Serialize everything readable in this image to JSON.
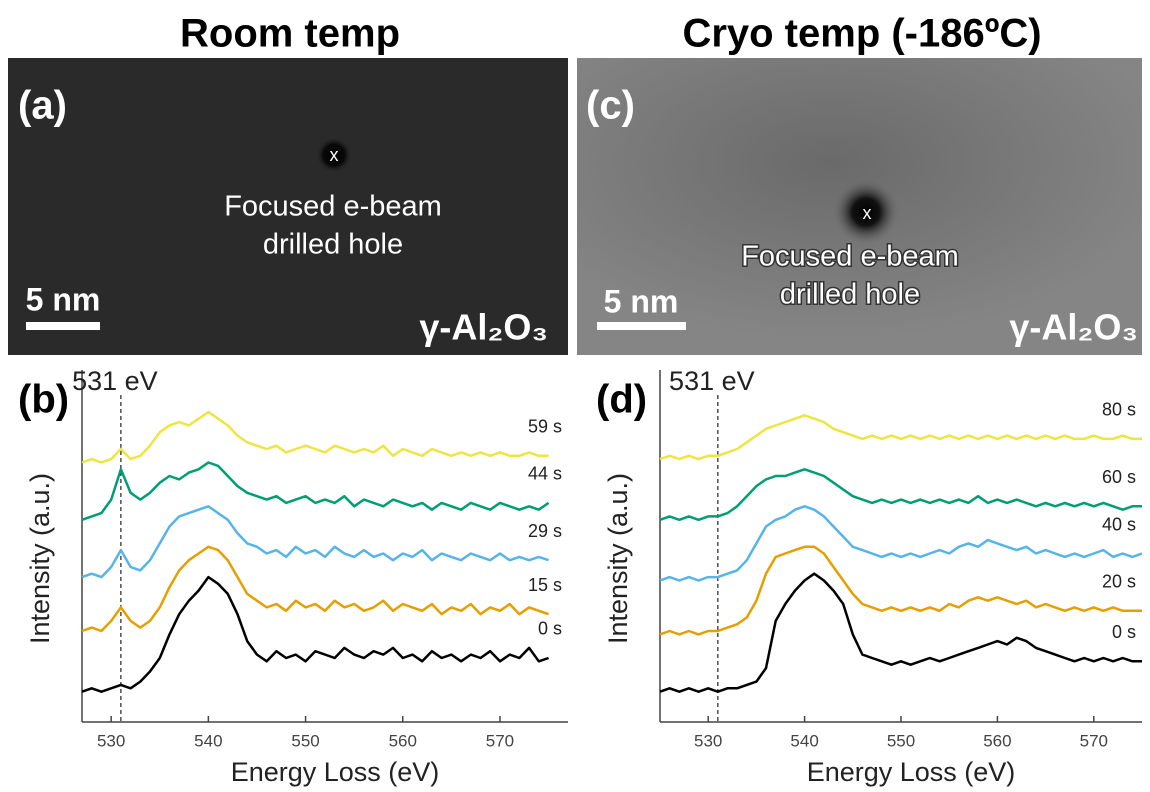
{
  "headings": {
    "left": "Room temp",
    "right": "Cryo temp (-186ºC)"
  },
  "images": [
    {
      "label": "(a)",
      "marker": "x",
      "annotation": [
        "Focused e-beam",
        "drilled hole"
      ],
      "scale_bar": "5 nm",
      "material": "γ-Al₂O₃"
    },
    {
      "label": "(c)",
      "marker": "x",
      "annotation": [
        "Focused e-beam",
        "drilled hole"
      ],
      "scale_bar": "5 nm",
      "material": "γ-Al₂O₃"
    }
  ],
  "chart_data": [
    {
      "type": "line",
      "panel_label": "(b)",
      "x_label": "Energy Loss (eV)",
      "y_label": "Intensity (a.u.)",
      "xlim": [
        527,
        577
      ],
      "xticks": [
        530,
        540,
        550,
        560,
        570
      ],
      "ylim": [
        0,
        10
      ],
      "vline": {
        "value": 531,
        "label": "531 eV"
      },
      "x": [
        527,
        528,
        529,
        530,
        531,
        532,
        533,
        534,
        535,
        536,
        537,
        538,
        539,
        540,
        541,
        542,
        543,
        544,
        545,
        546,
        547,
        548,
        549,
        550,
        551,
        552,
        553,
        554,
        555,
        556,
        557,
        558,
        559,
        560,
        561,
        562,
        563,
        564,
        565,
        566,
        567,
        568,
        569,
        570,
        571,
        572,
        573,
        574,
        575
      ],
      "series": [
        {
          "name": "0 s",
          "color": "#000000",
          "values": [
            0.9,
            1.0,
            0.9,
            1.0,
            1.1,
            1.0,
            1.2,
            1.5,
            1.9,
            2.6,
            3.2,
            3.6,
            3.9,
            4.3,
            4.1,
            3.8,
            3.2,
            2.4,
            2.0,
            1.8,
            2.1,
            1.9,
            2.0,
            1.8,
            2.1,
            2.0,
            1.9,
            2.2,
            2.0,
            1.9,
            2.1,
            2.0,
            2.2,
            1.9,
            2.0,
            1.8,
            2.1,
            1.9,
            2.0,
            1.8,
            2.0,
            1.9,
            2.1,
            1.8,
            2.0,
            1.9,
            2.2,
            1.8,
            1.9
          ]
        },
        {
          "name": "15 s",
          "color": "#e69f00",
          "values": [
            2.7,
            2.8,
            2.7,
            3.0,
            3.4,
            3.0,
            2.8,
            3.0,
            3.4,
            4.0,
            4.5,
            4.8,
            5.0,
            5.2,
            5.1,
            4.8,
            4.3,
            3.8,
            3.6,
            3.4,
            3.5,
            3.3,
            3.6,
            3.4,
            3.5,
            3.3,
            3.6,
            3.4,
            3.5,
            3.3,
            3.4,
            3.6,
            3.3,
            3.5,
            3.4,
            3.3,
            3.5,
            3.2,
            3.4,
            3.3,
            3.5,
            3.2,
            3.4,
            3.3,
            3.5,
            3.2,
            3.4,
            3.3,
            3.2
          ]
        },
        {
          "name": "29 s",
          "color": "#56b4e9",
          "values": [
            4.3,
            4.4,
            4.3,
            4.6,
            5.1,
            4.6,
            4.5,
            4.8,
            5.3,
            5.8,
            6.1,
            6.2,
            6.3,
            6.4,
            6.2,
            6.0,
            5.6,
            5.3,
            5.2,
            5.0,
            5.1,
            4.9,
            5.2,
            5.0,
            5.1,
            4.9,
            5.2,
            5.0,
            4.9,
            5.1,
            4.9,
            5.0,
            4.8,
            5.0,
            4.9,
            5.1,
            4.8,
            5.0,
            4.9,
            4.8,
            5.0,
            4.9,
            4.8,
            5.0,
            4.8,
            4.9,
            4.8,
            4.9,
            4.8
          ]
        },
        {
          "name": "44 s",
          "color": "#009e73",
          "values": [
            6.0,
            6.1,
            6.2,
            6.6,
            7.5,
            6.8,
            6.6,
            6.8,
            7.1,
            7.3,
            7.2,
            7.4,
            7.5,
            7.7,
            7.6,
            7.3,
            7.0,
            6.8,
            6.7,
            6.6,
            6.7,
            6.5,
            6.6,
            6.7,
            6.5,
            6.6,
            6.5,
            6.7,
            6.4,
            6.6,
            6.5,
            6.4,
            6.6,
            6.5,
            6.4,
            6.5,
            6.3,
            6.5,
            6.4,
            6.3,
            6.5,
            6.4,
            6.3,
            6.5,
            6.4,
            6.3,
            6.4,
            6.3,
            6.5
          ]
        },
        {
          "name": "59 s",
          "color": "#f0e442",
          "values": [
            7.7,
            7.8,
            7.7,
            7.8,
            8.1,
            7.8,
            7.9,
            8.2,
            8.6,
            8.8,
            8.9,
            8.8,
            9.0,
            9.2,
            9.0,
            8.8,
            8.5,
            8.3,
            8.2,
            8.1,
            8.2,
            8.0,
            8.1,
            8.2,
            8.1,
            8.0,
            8.2,
            8.1,
            8.0,
            8.1,
            8.0,
            8.2,
            7.9,
            8.1,
            8.0,
            7.9,
            8.1,
            8.0,
            7.9,
            8.0,
            7.9,
            8.0,
            7.9,
            8.0,
            7.9,
            7.9,
            8.0,
            7.9,
            7.9
          ]
        }
      ]
    },
    {
      "type": "line",
      "panel_label": "(d)",
      "x_label": "Energy Loss (eV)",
      "y_label": "Intensity (a.u.)",
      "xlim": [
        525,
        575
      ],
      "xticks": [
        530,
        540,
        550,
        560,
        570
      ],
      "ylim": [
        0,
        10
      ],
      "vline": {
        "value": 531,
        "label": "531 eV"
      },
      "x": [
        525,
        526,
        527,
        528,
        529,
        530,
        531,
        532,
        533,
        534,
        535,
        536,
        537,
        538,
        539,
        540,
        541,
        542,
        543,
        544,
        545,
        546,
        547,
        548,
        549,
        550,
        551,
        552,
        553,
        554,
        555,
        556,
        557,
        558,
        559,
        560,
        561,
        562,
        563,
        564,
        565,
        566,
        567,
        568,
        569,
        570,
        571,
        572,
        573,
        574,
        575
      ],
      "series": [
        {
          "name": "0 s",
          "color": "#000000",
          "values": [
            0.9,
            1.0,
            0.9,
            1.0,
            0.9,
            1.0,
            0.9,
            1.0,
            1.0,
            1.1,
            1.2,
            1.6,
            3.0,
            3.5,
            3.9,
            4.2,
            4.4,
            4.2,
            3.9,
            3.5,
            2.6,
            2.0,
            1.9,
            1.8,
            1.7,
            1.8,
            1.7,
            1.8,
            1.9,
            1.8,
            1.9,
            2.0,
            2.1,
            2.2,
            2.3,
            2.4,
            2.3,
            2.5,
            2.4,
            2.2,
            2.1,
            2.0,
            1.9,
            1.8,
            1.9,
            1.8,
            1.9,
            1.8,
            1.9,
            1.8,
            1.8
          ]
        },
        {
          "name": "20 s",
          "color": "#e69f00",
          "values": [
            2.6,
            2.7,
            2.6,
            2.7,
            2.6,
            2.7,
            2.7,
            2.8,
            2.9,
            3.1,
            3.6,
            4.4,
            4.9,
            5.0,
            5.1,
            5.2,
            5.2,
            5.0,
            4.6,
            4.2,
            3.8,
            3.5,
            3.4,
            3.3,
            3.4,
            3.3,
            3.4,
            3.3,
            3.4,
            3.3,
            3.5,
            3.4,
            3.6,
            3.7,
            3.6,
            3.7,
            3.6,
            3.5,
            3.6,
            3.4,
            3.5,
            3.4,
            3.3,
            3.4,
            3.3,
            3.4,
            3.3,
            3.4,
            3.3,
            3.3,
            3.3
          ]
        },
        {
          "name": "40 s",
          "color": "#56b4e9",
          "values": [
            4.2,
            4.3,
            4.2,
            4.3,
            4.2,
            4.3,
            4.3,
            4.4,
            4.5,
            4.8,
            5.3,
            5.8,
            6.0,
            6.1,
            6.3,
            6.4,
            6.3,
            6.1,
            5.8,
            5.5,
            5.2,
            5.1,
            5.0,
            4.9,
            5.0,
            4.9,
            5.0,
            4.9,
            5.0,
            5.1,
            5.0,
            5.2,
            5.3,
            5.2,
            5.4,
            5.3,
            5.2,
            5.1,
            5.2,
            5.0,
            5.1,
            5.0,
            4.9,
            5.0,
            4.9,
            5.0,
            5.1,
            4.9,
            5.0,
            4.9,
            5.0
          ]
        },
        {
          "name": "60 s",
          "color": "#009e73",
          "values": [
            6.0,
            6.1,
            6.0,
            6.1,
            6.0,
            6.1,
            6.1,
            6.2,
            6.4,
            6.7,
            7.0,
            7.2,
            7.3,
            7.3,
            7.4,
            7.5,
            7.4,
            7.3,
            7.1,
            6.9,
            6.7,
            6.6,
            6.5,
            6.6,
            6.5,
            6.6,
            6.5,
            6.6,
            6.5,
            6.6,
            6.5,
            6.6,
            6.5,
            6.7,
            6.5,
            6.6,
            6.5,
            6.6,
            6.5,
            6.4,
            6.5,
            6.4,
            6.5,
            6.4,
            6.5,
            6.4,
            6.5,
            6.4,
            6.3,
            6.4,
            6.4
          ]
        },
        {
          "name": "80 s",
          "color": "#f0e442",
          "values": [
            7.8,
            7.9,
            7.8,
            7.9,
            7.8,
            7.9,
            7.9,
            8.0,
            8.1,
            8.3,
            8.5,
            8.7,
            8.8,
            8.9,
            9.0,
            9.1,
            9.0,
            8.9,
            8.7,
            8.6,
            8.5,
            8.4,
            8.5,
            8.4,
            8.5,
            8.4,
            8.5,
            8.4,
            8.5,
            8.4,
            8.5,
            8.4,
            8.5,
            8.4,
            8.5,
            8.4,
            8.5,
            8.4,
            8.5,
            8.4,
            8.5,
            8.4,
            8.5,
            8.4,
            8.4,
            8.5,
            8.4,
            8.4,
            8.5,
            8.4,
            8.4
          ]
        }
      ]
    }
  ]
}
